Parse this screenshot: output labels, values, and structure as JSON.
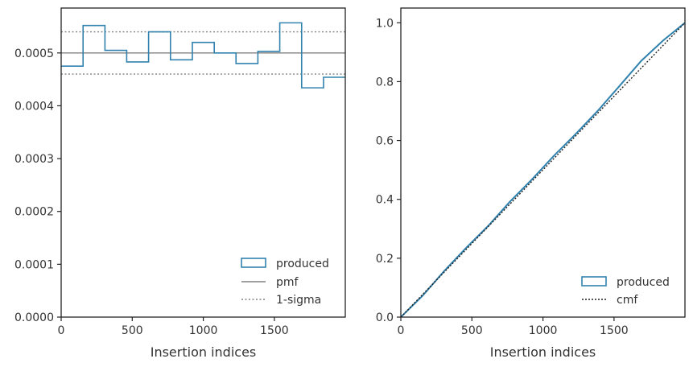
{
  "colors": {
    "produced": "#3182ae",
    "pmf": "#808080",
    "sigma": "#808080",
    "cmf": "#222222",
    "axes": "#222222"
  },
  "chart_data": [
    {
      "type": "line",
      "drawstyle": "steps",
      "xlabel": "Insertion indices",
      "ylabel": "",
      "xlim": [
        0,
        1999
      ],
      "ylim": [
        0,
        0.000585
      ],
      "xticks": [
        0,
        500,
        1000,
        1500
      ],
      "xtick_labels": [
        "0",
        "500",
        "1000",
        "1500"
      ],
      "yticks": [
        0,
        0.0001,
        0.0002,
        0.0003,
        0.0004,
        0.0005
      ],
      "ytick_labels": [
        "0.0000",
        "0.0001",
        "0.0002",
        "0.0003",
        "0.0004",
        "0.0005"
      ],
      "series": [
        {
          "name": "produced",
          "bin_edges": [
            0,
            154,
            308,
            461,
            615,
            769,
            923,
            1077,
            1230,
            1384,
            1538,
            1692,
            1846,
            1999
          ],
          "values": [
            0.000475,
            0.000552,
            0.000505,
            0.000483,
            0.00054,
            0.000487,
            0.00052,
            0.0005,
            0.00048,
            0.000503,
            0.000557,
            0.000434,
            0.000454
          ]
        },
        {
          "name": "pmf",
          "value": 0.0005
        },
        {
          "name": "1-sigma",
          "values": [
            0.00054,
            0.00046
          ]
        }
      ],
      "legend": {
        "position": "lower-right",
        "entries": [
          "produced",
          "pmf",
          "1-sigma"
        ]
      }
    },
    {
      "type": "line",
      "xlabel": "Insertion indices",
      "ylabel": "",
      "xlim": [
        0,
        1999
      ],
      "ylim": [
        0,
        1.05
      ],
      "xticks": [
        0,
        500,
        1000,
        1500
      ],
      "xtick_labels": [
        "0",
        "500",
        "1000",
        "1500"
      ],
      "yticks": [
        0,
        0.2,
        0.4,
        0.6,
        0.8,
        1.0
      ],
      "ytick_labels": [
        "0.0",
        "0.2",
        "0.4",
        "0.6",
        "0.8",
        "1.0"
      ],
      "series": [
        {
          "name": "produced",
          "x": [
            0,
            154,
            308,
            461,
            615,
            769,
            923,
            1077,
            1230,
            1384,
            1538,
            1692,
            1846,
            1999
          ],
          "y": [
            0,
            0.073,
            0.158,
            0.236,
            0.31,
            0.393,
            0.468,
            0.548,
            0.622,
            0.7,
            0.785,
            0.871,
            0.94,
            1.0
          ]
        },
        {
          "name": "cmf",
          "x": [
            0,
            1999
          ],
          "y": [
            0,
            1.0
          ]
        }
      ],
      "legend": {
        "position": "lower-right",
        "entries": [
          "produced",
          "cmf"
        ]
      }
    }
  ]
}
